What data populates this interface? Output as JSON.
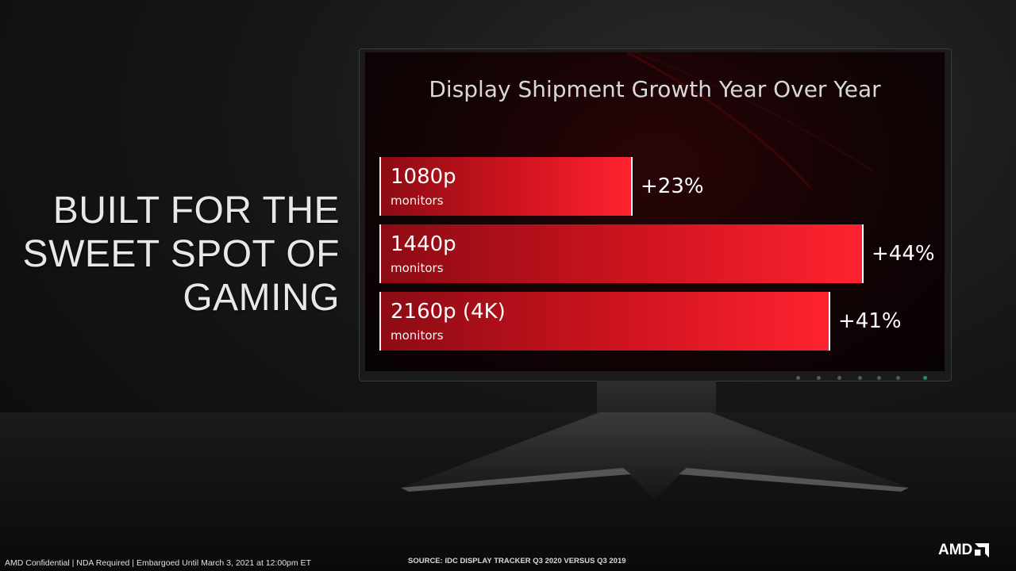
{
  "slide": {
    "headline": [
      "BUILT FOR THE",
      "SWEET SPOT OF",
      "GAMING"
    ],
    "footer_left": "AMD Confidential | NDA Required | Embargoed Until March 3, 2021 at 12:00pm ET",
    "source": "SOURCE: IDC DISPLAY TRACKER Q3 2020 VERSUS Q3 2019",
    "logo_text": "AMD"
  },
  "colors": {
    "bar": "#e41b27",
    "background": "#111111"
  },
  "chart_data": {
    "type": "bar",
    "orientation": "horizontal",
    "title": "Display Shipment Growth Year Over Year",
    "categories": [
      "1080p",
      "1440p",
      "2160p (4K)"
    ],
    "category_subtitle": "monitors",
    "values": [
      23,
      44,
      41
    ],
    "value_labels": [
      "+23%",
      "+44%",
      "+41%"
    ],
    "unit": "%"
  }
}
